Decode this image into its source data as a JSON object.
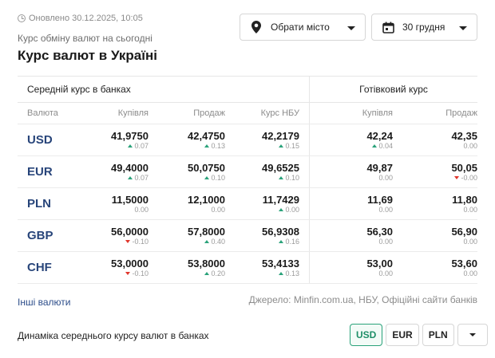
{
  "header": {
    "updated": "Оновлено 30.12.2025, 10:05",
    "subtitle": "Курс обміну валют на сьогодні",
    "title": "Курс валют в Україні",
    "city_select": "Обрати місто",
    "date_select": "30 грудня"
  },
  "table": {
    "group_banks": "Середній курс в банках",
    "group_cash": "Готівковий курс",
    "columns": {
      "currency": "Валюта",
      "buy": "Купівля",
      "sell": "Продаж",
      "nbu": "Курс НБУ",
      "cash_buy": "Купівля",
      "cash_sell": "Продаж"
    },
    "rows": [
      {
        "code": "USD",
        "buy": "41,9750",
        "buy_chg": "0.07",
        "buy_dir": "up",
        "sell": "42,4750",
        "sell_chg": "0.13",
        "sell_dir": "up",
        "nbu": "42,2179",
        "nbu_chg": "0.15",
        "nbu_dir": "up",
        "cash_buy": "42,24",
        "cash_buy_chg": "0.04",
        "cash_buy_dir": "up",
        "cash_sell": "42,35",
        "cash_sell_chg": "0.00",
        "cash_sell_dir": "none"
      },
      {
        "code": "EUR",
        "buy": "49,4000",
        "buy_chg": "0.07",
        "buy_dir": "up",
        "sell": "50,0750",
        "sell_chg": "0.10",
        "sell_dir": "up",
        "nbu": "49,6525",
        "nbu_chg": "0.10",
        "nbu_dir": "up",
        "cash_buy": "49,87",
        "cash_buy_chg": "0.00",
        "cash_buy_dir": "none",
        "cash_sell": "50,05",
        "cash_sell_chg": "-0.00",
        "cash_sell_dir": "down"
      },
      {
        "code": "PLN",
        "buy": "11,5000",
        "buy_chg": "0.00",
        "buy_dir": "none",
        "sell": "12,1000",
        "sell_chg": "0.00",
        "sell_dir": "none",
        "nbu": "11,7429",
        "nbu_chg": "0.00",
        "nbu_dir": "up",
        "cash_buy": "11,69",
        "cash_buy_chg": "0.00",
        "cash_buy_dir": "none",
        "cash_sell": "11,80",
        "cash_sell_chg": "0.00",
        "cash_sell_dir": "none"
      },
      {
        "code": "GBP",
        "buy": "56,0000",
        "buy_chg": "-0.10",
        "buy_dir": "down",
        "sell": "57,8000",
        "sell_chg": "0.40",
        "sell_dir": "up",
        "nbu": "56,9308",
        "nbu_chg": "0.16",
        "nbu_dir": "up",
        "cash_buy": "56,30",
        "cash_buy_chg": "0.00",
        "cash_buy_dir": "none",
        "cash_sell": "56,90",
        "cash_sell_chg": "0.00",
        "cash_sell_dir": "none"
      },
      {
        "code": "CHF",
        "buy": "53,0000",
        "buy_chg": "-0.10",
        "buy_dir": "down",
        "sell": "53,8000",
        "sell_chg": "0.20",
        "sell_dir": "up",
        "nbu": "53,4133",
        "nbu_chg": "0.13",
        "nbu_dir": "up",
        "cash_buy": "53,00",
        "cash_buy_chg": "0.00",
        "cash_buy_dir": "none",
        "cash_sell": "53,60",
        "cash_sell_chg": "0.00",
        "cash_sell_dir": "none"
      }
    ]
  },
  "footer": {
    "other_currencies": "Інші валюти",
    "source": "Джерело: Minfin.com.ua, НБУ, Офіційні сайти банків",
    "dynamics_label": "Динаміка середнього курсу валют в банках",
    "chips": [
      "USD",
      "EUR",
      "PLN"
    ],
    "active_chip": "USD"
  },
  "colors": {
    "accent_green": "#2aa27a",
    "down_red": "#e0362c",
    "currency_blue": "#28457a",
    "link_blue": "#2c4d8a"
  }
}
